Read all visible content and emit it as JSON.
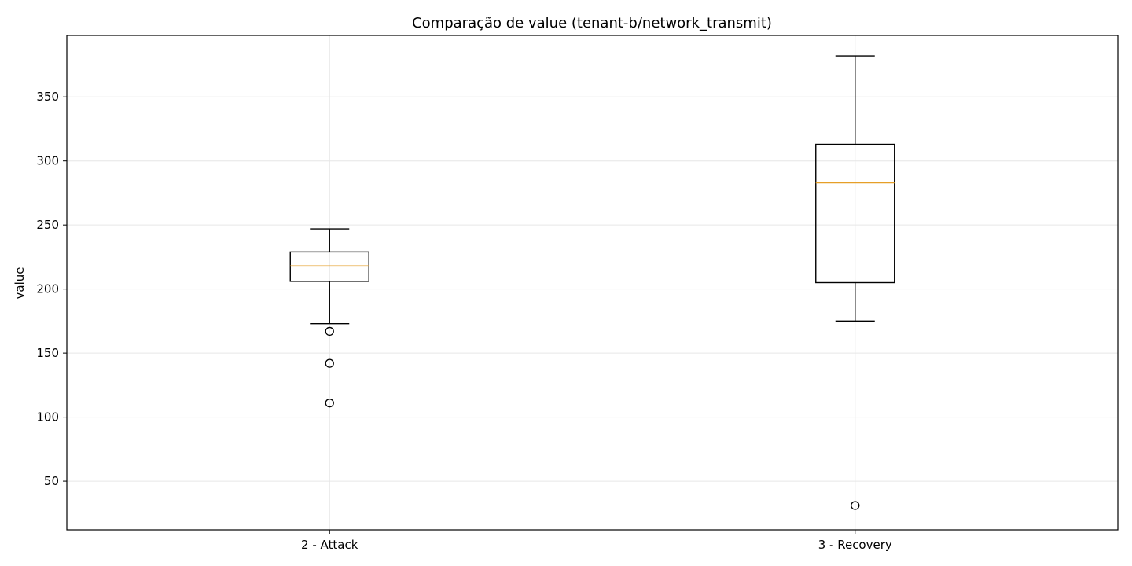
{
  "chart_data": {
    "type": "box",
    "title": "Comparação de value (tenant-b/network_transmit)",
    "xlabel": "",
    "ylabel": "value",
    "ylim": [
      12,
      398
    ],
    "yticks": [
      50,
      100,
      150,
      200,
      250,
      300,
      350
    ],
    "grid": true,
    "categories": [
      "2 - Attack",
      "3 - Recovery"
    ],
    "boxes": [
      {
        "category": "2 - Attack",
        "whisker_low": 173,
        "q1": 206,
        "median": 218,
        "q3": 229,
        "whisker_high": 247,
        "outliers": [
          167,
          142,
          111
        ]
      },
      {
        "category": "3 - Recovery",
        "whisker_low": 175,
        "q1": 205,
        "median": 283,
        "q3": 313,
        "whisker_high": 382,
        "outliers": [
          31
        ]
      }
    ],
    "colors": {
      "box": "#000000",
      "median": "#e69f28",
      "grid": "#e6e6e6",
      "frame": "#000000"
    }
  }
}
